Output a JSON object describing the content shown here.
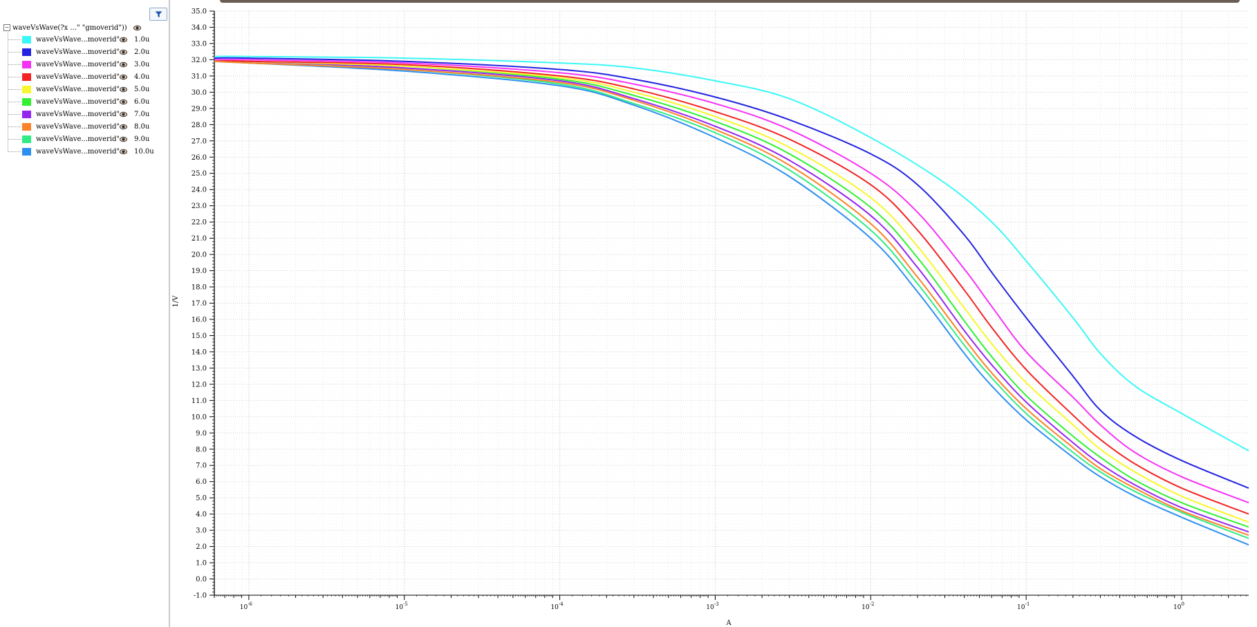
{
  "sidebar": {
    "root": {
      "label": "waveVsWave(?x ...\" \"gmoverid\"))"
    },
    "items": [
      {
        "label": "waveVsWave...moverid\"))",
        "value": "1.0u",
        "color": "#3cf7f7"
      },
      {
        "label": "waveVsWave...moverid\"))",
        "value": "2.0u",
        "color": "#2323e0"
      },
      {
        "label": "waveVsWave...moverid\"))",
        "value": "3.0u",
        "color": "#f531f5"
      },
      {
        "label": "waveVsWave...moverid\"))",
        "value": "4.0u",
        "color": "#f32323"
      },
      {
        "label": "waveVsWave...moverid\"))",
        "value": "5.0u",
        "color": "#f7f72e"
      },
      {
        "label": "waveVsWave...moverid\"))",
        "value": "6.0u",
        "color": "#32f032"
      },
      {
        "label": "waveVsWave...moverid\"))",
        "value": "7.0u",
        "color": "#9326f0"
      },
      {
        "label": "waveVsWave...moverid\"))",
        "value": "8.0u",
        "color": "#fa8228"
      },
      {
        "label": "waveVsWave...moverid\"))",
        "value": "9.0u",
        "color": "#30ec84"
      },
      {
        "label": "waveVsWave...moverid\"))",
        "value": "10.0u",
        "color": "#2d8ff0"
      }
    ]
  },
  "chart_data": {
    "type": "line",
    "x_scale": "log",
    "xlabel": "A",
    "ylabel": "1/V",
    "xlim": [
      6e-07,
      2.7
    ],
    "ylim": [
      -1.0,
      35.0
    ],
    "grid": true,
    "x_tick_labels": [
      "10^-6",
      "10^-5",
      "10^-4",
      "10^-3",
      "10^-2",
      "10^-1",
      "10^0"
    ],
    "y_tick_labels": [
      "-1.0",
      "0.0",
      "1.0",
      "2.0",
      "3.0",
      "4.0",
      "5.0",
      "6.0",
      "7.0",
      "8.0",
      "9.0",
      "10.0",
      "11.0",
      "12.0",
      "13.0",
      "14.0",
      "15.0",
      "16.0",
      "17.0",
      "18.0",
      "19.0",
      "20.0",
      "21.0",
      "22.0",
      "23.0",
      "24.0",
      "25.0",
      "26.0",
      "27.0",
      "28.0",
      "29.0",
      "30.0",
      "31.0",
      "32.0",
      "33.0",
      "34.0",
      "35.0"
    ],
    "series": [
      {
        "name": "1.0u",
        "color": "#3cf7f7",
        "x": [
          6e-07,
          1e-06,
          1e-05,
          0.0001,
          0.0003,
          0.001,
          0.003,
          0.01,
          0.03,
          0.06,
          0.1,
          0.2,
          0.3,
          0.5,
          1.0,
          2.7
        ],
        "y": [
          32.2,
          32.2,
          32.1,
          31.8,
          31.5,
          30.7,
          29.6,
          27.2,
          24.4,
          22.0,
          19.6,
          16.1,
          13.9,
          11.9,
          10.2,
          7.9
        ]
      },
      {
        "name": "2.0u",
        "color": "#2323e0",
        "x": [
          6e-07,
          1e-06,
          1e-05,
          0.0001,
          0.0003,
          0.001,
          0.003,
          0.01,
          0.02,
          0.04,
          0.06,
          0.1,
          0.2,
          0.3,
          0.5,
          1.0,
          2.7
        ],
        "y": [
          32.1,
          32.1,
          31.9,
          31.4,
          30.8,
          29.7,
          28.3,
          26.2,
          24.3,
          21.2,
          18.9,
          16.1,
          12.5,
          10.4,
          8.8,
          7.3,
          5.6
        ]
      },
      {
        "name": "3.0u",
        "color": "#f531f5",
        "x": [
          6e-07,
          1e-06,
          1e-05,
          0.0001,
          0.0003,
          0.001,
          0.003,
          0.01,
          0.02,
          0.04,
          0.06,
          0.1,
          0.2,
          0.3,
          0.5,
          1.0,
          2.7
        ],
        "y": [
          32.0,
          32.0,
          31.8,
          31.2,
          30.5,
          29.3,
          27.7,
          25.0,
          22.6,
          19.1,
          16.8,
          14.0,
          11.2,
          9.5,
          7.8,
          6.3,
          4.7
        ]
      },
      {
        "name": "4.0u",
        "color": "#f32323",
        "x": [
          6e-07,
          1e-06,
          1e-05,
          0.0001,
          0.0003,
          0.001,
          0.003,
          0.01,
          0.02,
          0.04,
          0.06,
          0.1,
          0.2,
          0.3,
          0.5,
          1.0,
          2.7
        ],
        "y": [
          32.0,
          31.9,
          31.7,
          31.0,
          30.2,
          28.8,
          27.1,
          24.3,
          21.5,
          17.8,
          15.5,
          12.9,
          10.1,
          8.6,
          7.1,
          5.6,
          4.0
        ]
      },
      {
        "name": "5.0u",
        "color": "#f7f72e",
        "x": [
          6e-07,
          1e-06,
          1e-05,
          0.0001,
          0.0003,
          0.001,
          0.003,
          0.01,
          0.02,
          0.04,
          0.06,
          0.1,
          0.2,
          0.3,
          0.5,
          1.0,
          2.7
        ],
        "y": [
          32.0,
          31.9,
          31.6,
          30.9,
          30.0,
          28.5,
          26.6,
          23.5,
          20.5,
          16.7,
          14.5,
          12.1,
          9.5,
          8.0,
          6.6,
          5.1,
          3.5
        ]
      },
      {
        "name": "6.0u",
        "color": "#32f032",
        "x": [
          6e-07,
          1e-06,
          1e-05,
          0.0001,
          0.0003,
          0.001,
          0.003,
          0.01,
          0.02,
          0.04,
          0.06,
          0.1,
          0.2,
          0.3,
          0.5,
          1.0,
          2.7
        ],
        "y": [
          32.0,
          31.9,
          31.6,
          30.8,
          29.8,
          28.2,
          26.2,
          22.9,
          19.8,
          15.9,
          13.7,
          11.3,
          8.8,
          7.5,
          6.1,
          4.7,
          3.2
        ]
      },
      {
        "name": "7.0u",
        "color": "#9326f0",
        "x": [
          6e-07,
          1e-06,
          1e-05,
          0.0001,
          0.0003,
          0.001,
          0.003,
          0.01,
          0.02,
          0.04,
          0.06,
          0.1,
          0.2,
          0.3,
          0.5,
          1.0,
          2.7
        ],
        "y": [
          32.0,
          31.9,
          31.5,
          30.7,
          29.6,
          27.9,
          25.8,
          22.4,
          19.2,
          15.3,
          13.2,
          10.9,
          8.4,
          7.1,
          5.8,
          4.4,
          2.9
        ]
      },
      {
        "name": "8.0u",
        "color": "#fa8228",
        "x": [
          6e-07,
          1e-06,
          1e-05,
          0.0001,
          0.0003,
          0.001,
          0.003,
          0.01,
          0.02,
          0.04,
          0.06,
          0.1,
          0.2,
          0.3,
          0.5,
          1.0,
          2.7
        ],
        "y": [
          31.9,
          31.8,
          31.4,
          30.6,
          29.5,
          27.7,
          25.5,
          21.9,
          18.6,
          14.8,
          12.7,
          10.5,
          8.1,
          6.8,
          5.6,
          4.2,
          2.7
        ]
      },
      {
        "name": "9.0u",
        "color": "#30ec84",
        "x": [
          6e-07,
          1e-06,
          1e-05,
          0.0001,
          0.0003,
          0.001,
          0.003,
          0.01,
          0.02,
          0.04,
          0.06,
          0.1,
          0.2,
          0.3,
          0.5,
          1.0,
          2.7
        ],
        "y": [
          31.9,
          31.8,
          31.4,
          30.5,
          29.3,
          27.5,
          25.2,
          21.5,
          18.2,
          14.4,
          12.4,
          10.2,
          7.8,
          6.6,
          5.4,
          4.1,
          2.5
        ]
      },
      {
        "name": "10.0u",
        "color": "#2d8ff0",
        "x": [
          6e-07,
          1e-06,
          1e-05,
          0.0001,
          0.0003,
          0.001,
          0.003,
          0.01,
          0.02,
          0.04,
          0.06,
          0.1,
          0.2,
          0.3,
          0.5,
          1.0,
          2.7
        ],
        "y": [
          31.9,
          31.8,
          31.3,
          30.4,
          29.2,
          27.2,
          24.8,
          21.0,
          17.7,
          13.9,
          11.9,
          9.8,
          7.5,
          6.3,
          5.1,
          3.8,
          2.1
        ]
      }
    ]
  }
}
